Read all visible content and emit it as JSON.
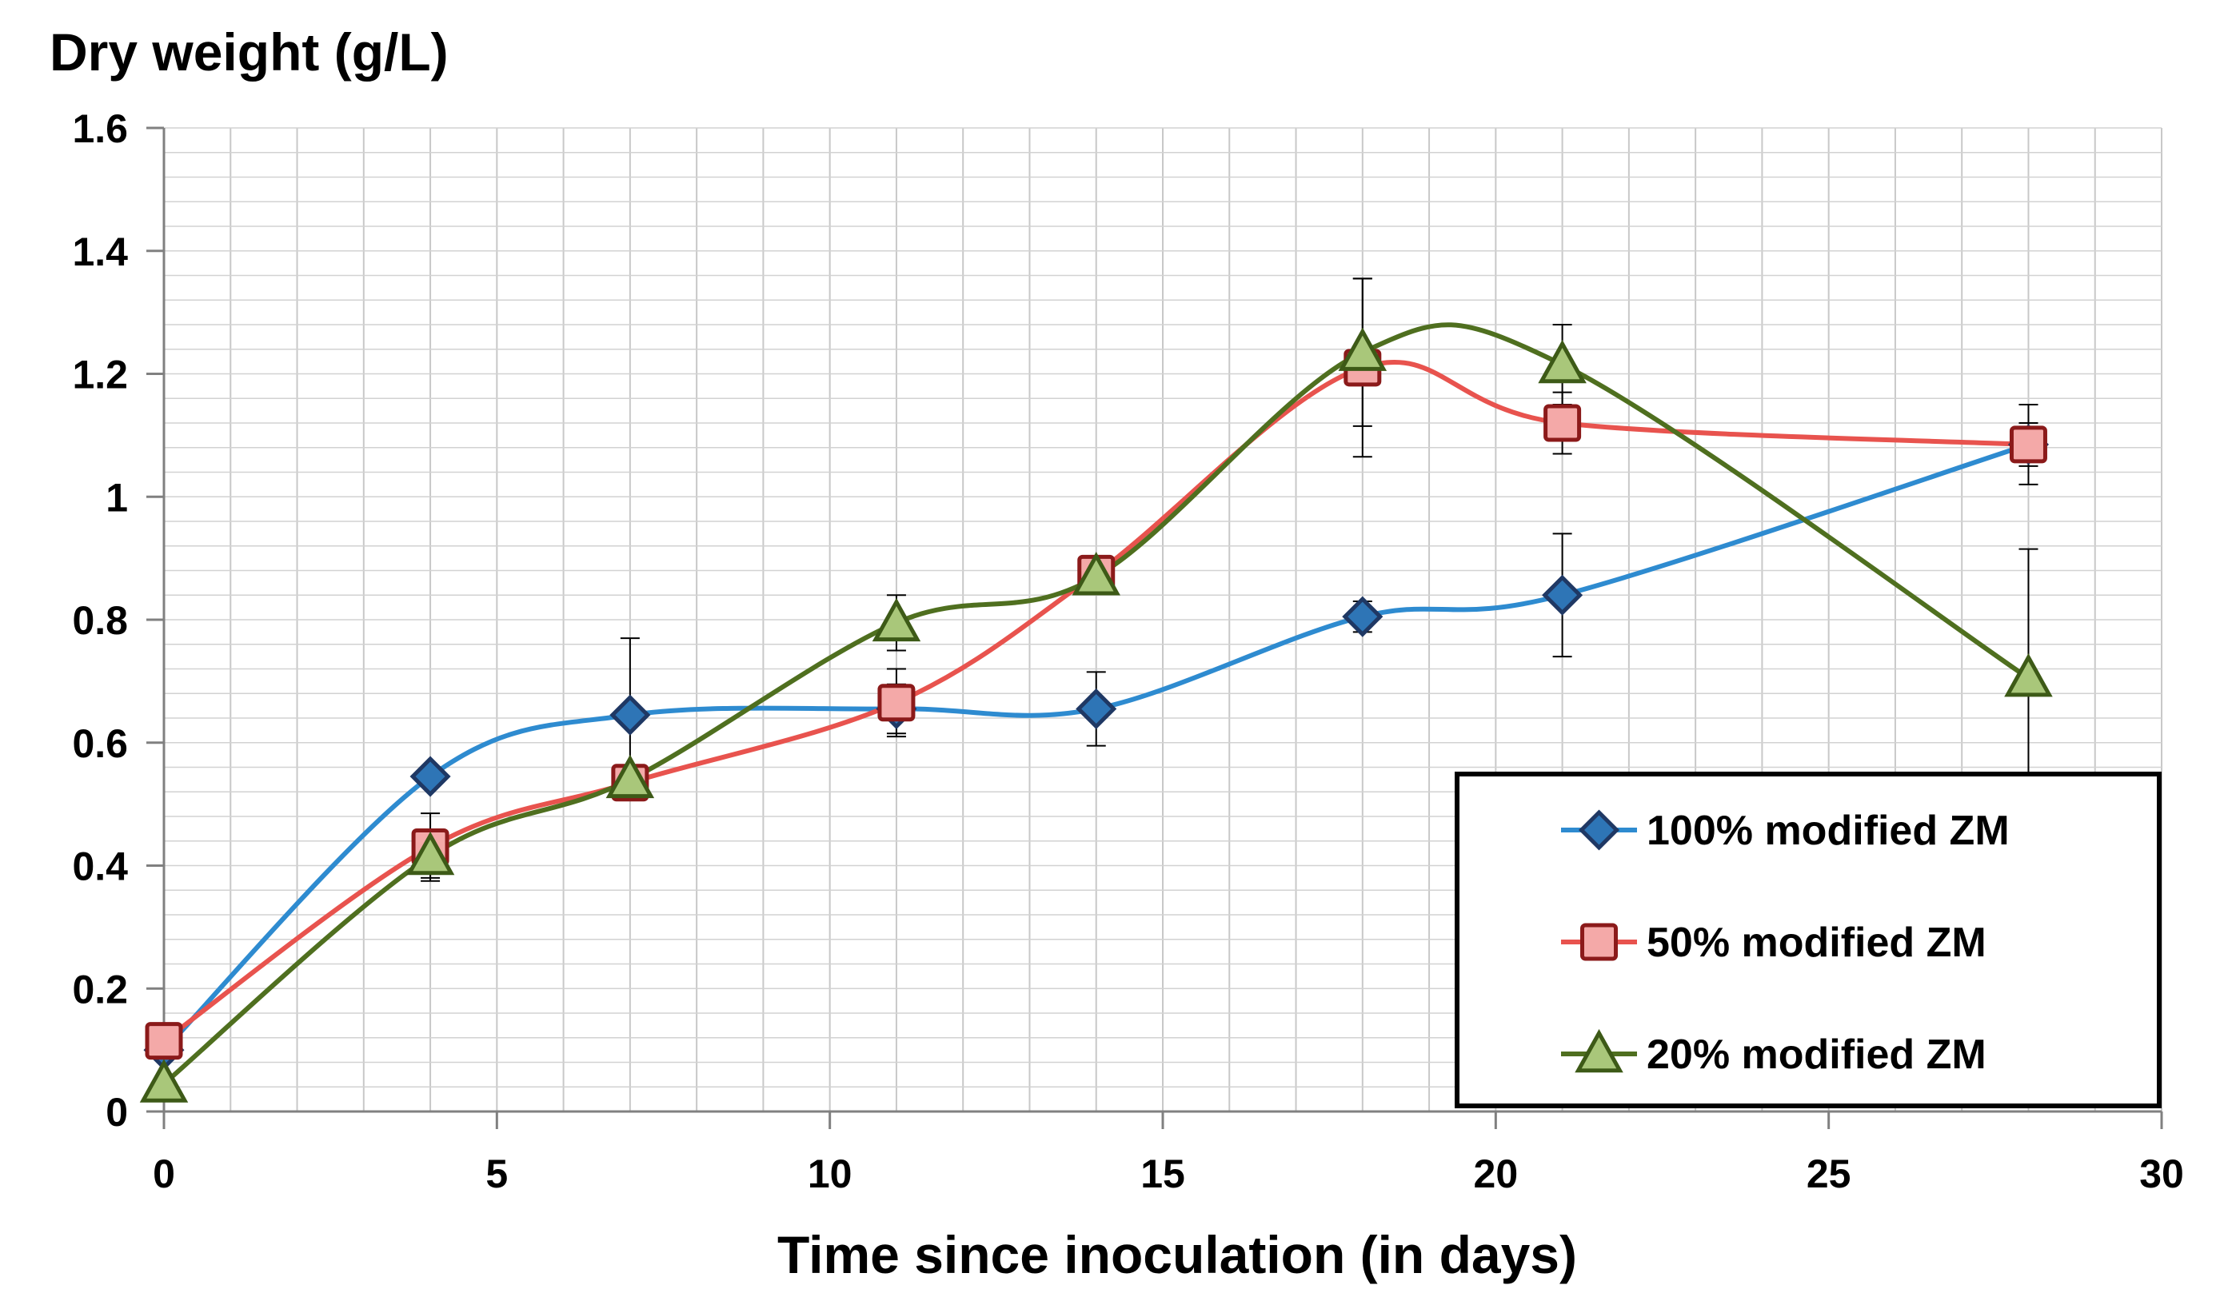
{
  "chart_data": {
    "type": "line",
    "title": "",
    "ylabel": "Dry weight (g/L)",
    "xlabel": "Time since inoculation (in days)",
    "xlim": [
      0,
      30
    ],
    "ylim": [
      0,
      1.6
    ],
    "x_major_ticks": [
      0,
      5,
      10,
      15,
      20,
      25,
      30
    ],
    "x_tick_labels": [
      "0",
      "5",
      "10",
      "15",
      "20",
      "25",
      "30"
    ],
    "y_major_ticks": [
      0,
      0.2,
      0.4,
      0.6,
      0.8,
      1,
      1.2,
      1.4,
      1.6
    ],
    "y_tick_labels": [
      "0",
      "0.2",
      "0.4",
      "0.6",
      "0.8",
      "1",
      "1.2",
      "1.4",
      "1.6"
    ],
    "x_minor_step": 1,
    "y_minor_step": 0.04,
    "grid": true,
    "smoothed": true,
    "legend_position": "bottom-right",
    "series": [
      {
        "name": "100% modified ZM",
        "color": "#2E8BD0",
        "marker": "diamond",
        "marker_fill": "#2E75B6",
        "marker_stroke": "#1F3864",
        "x": [
          0,
          4,
          7,
          11,
          14,
          18,
          21,
          28
        ],
        "y": [
          0.1,
          0.545,
          0.645,
          0.655,
          0.655,
          0.805,
          0.84,
          1.085
        ],
        "err": [
          0,
          0,
          0.125,
          0.04,
          0.06,
          0.025,
          0.1,
          0.035
        ]
      },
      {
        "name": "50% modified ZM",
        "color": "#E8534E",
        "marker": "square",
        "marker_fill": "#F4A9A8",
        "marker_stroke": "#8B1A1A",
        "x": [
          0,
          4,
          7,
          11,
          14,
          18,
          21,
          28
        ],
        "y": [
          0.115,
          0.43,
          0.535,
          0.665,
          0.875,
          1.21,
          1.12,
          1.085
        ],
        "err": [
          0,
          0.055,
          0,
          0.055,
          0,
          0.145,
          0.05,
          0.065
        ]
      },
      {
        "name": "20% modified ZM",
        "color": "#4F6F1F",
        "marker": "triangle",
        "marker_fill": "#A9C77A",
        "marker_stroke": "#3D5A17",
        "x": [
          0,
          4,
          7,
          11,
          14,
          18,
          21,
          28
        ],
        "y": [
          0.045,
          0.415,
          0.54,
          0.795,
          0.87,
          1.235,
          1.215,
          0.705
        ],
        "err": [
          0,
          0.035,
          0,
          0.045,
          0,
          0.12,
          0.065,
          0.21
        ]
      }
    ]
  }
}
